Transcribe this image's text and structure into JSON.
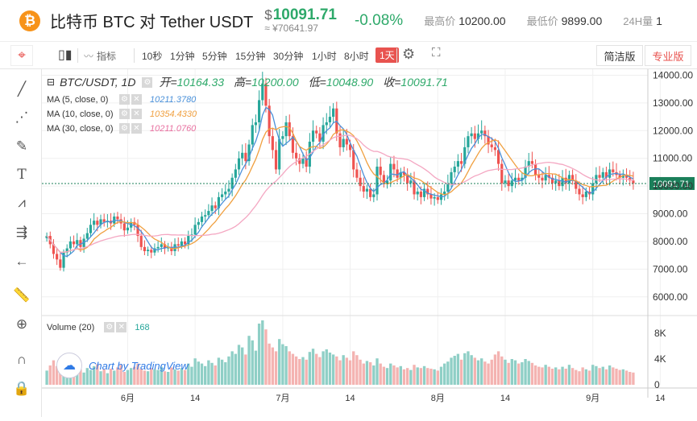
{
  "header": {
    "coin_symbol": "₿",
    "pair_title": "比特币 BTC  对 Tether USDT",
    "price_currency": "$",
    "price": "10091.71",
    "price_cny": "≈ ¥70641.97",
    "change": "-0.08%",
    "high_label": "最高价",
    "high_value": "10200.00",
    "low_label": "最低价",
    "low_value": "9899.00",
    "vol_label": "24H量",
    "vol_value": "1"
  },
  "toolbar": {
    "indicator_label": "指标",
    "intervals": [
      "10秒",
      "1分钟",
      "5分钟",
      "15分钟",
      "30分钟",
      "1小时",
      "8小时",
      "1天"
    ],
    "active_interval": "1天",
    "view_simple": "简洁版",
    "view_pro": "专业版"
  },
  "sidebar": {
    "icons": [
      "crosshair-icon",
      "line-tool-icon",
      "fib-tool-icon",
      "brush-icon",
      "text-icon",
      "pattern-icon",
      "measure-icon",
      "back-arrow-icon",
      "ruler-icon",
      "zoom-in-icon",
      "magnet-icon",
      "lock-icon"
    ]
  },
  "legend": {
    "symbol": "BTC/USDT, 1D",
    "open_label": "开=",
    "open": "10164.33",
    "high_label": "高=",
    "high": "10200.00",
    "low_label": "低=",
    "low": "10048.90",
    "close_label": "收=",
    "close": "10091.71",
    "ma": [
      {
        "name": "MA (5, close, 0)",
        "value": "10211.3780",
        "color": "#4a90d9"
      },
      {
        "name": "MA (10, close, 0)",
        "value": "10354.4330",
        "color": "#f0a040"
      },
      {
        "name": "MA (30, close, 0)",
        "value": "10211.0760",
        "color": "#e870a0"
      }
    ],
    "volume_name": "Volume (20)",
    "volume_value": "168",
    "tv_label": "Chart by TradingView"
  },
  "colors": {
    "up": "#26a69a",
    "down": "#ef5350",
    "vol_up": "#8fcfc6",
    "vol_down": "#f4b3b1",
    "ma5": "#4a90d9",
    "ma10": "#f0a040",
    "ma30": "#f4a7c2",
    "price_tag": "#1b7f5a"
  },
  "chart_data": {
    "type": "candlestick",
    "y_ticks": [
      "14000.00",
      "13000.00",
      "12000.00",
      "11000.00",
      "10000.00",
      "9000.00",
      "8000.00",
      "7000.00",
      "6000.00"
    ],
    "ylim": [
      5500,
      14100
    ],
    "vol_ticks": [
      "8K",
      "4K",
      "0"
    ],
    "vol_lim": [
      0,
      10000
    ],
    "x_ticks": [
      {
        "label": "6月",
        "index": 24
      },
      {
        "label": "14",
        "index": 44
      },
      {
        "label": "7月",
        "index": 70
      },
      {
        "label": "14",
        "index": 90
      },
      {
        "label": "8月",
        "index": 116
      },
      {
        "label": "14",
        "index": 136
      },
      {
        "label": "9月",
        "index": 162
      },
      {
        "label": "14",
        "index": 182
      }
    ],
    "last_price": 10091.71,
    "last_price_label": "10091.71",
    "close": [
      8200,
      7900,
      7550,
      7350,
      7050,
      7600,
      7750,
      8000,
      7900,
      8050,
      7800,
      8100,
      8300,
      8600,
      8750,
      8600,
      8800,
      8700,
      8750,
      8650,
      8900,
      8800,
      8650,
      8400,
      8500,
      8700,
      8600,
      8200,
      7800,
      7650,
      7700,
      7600,
      7750,
      7800,
      7900,
      7750,
      7800,
      7650,
      7900,
      7850,
      8000,
      7900,
      8200,
      8250,
      8600,
      8700,
      8900,
      8950,
      9100,
      9300,
      9200,
      9600,
      9700,
      9800,
      9900,
      10300,
      10600,
      11000,
      11200,
      10900,
      11500,
      12200,
      12300,
      13100,
      13700,
      12900,
      11800,
      11300,
      10600,
      11700,
      11800,
      12300,
      11800,
      11200,
      11000,
      10800,
      11000,
      10700,
      11600,
      12000,
      11900,
      11600,
      12200,
      12300,
      12500,
      12800,
      11900,
      11400,
      11700,
      11500,
      11300,
      10600,
      10300,
      10000,
      9800,
      9900,
      9600,
      9700,
      10700,
      10400,
      10100,
      10200,
      10800,
      10600,
      10300,
      10500,
      10400,
      10100,
      10200,
      9700,
      9800,
      9600,
      9900,
      9700,
      9550,
      9600,
      9500,
      9700,
      9800,
      10100,
      10500,
      10700,
      10900,
      10800,
      11400,
      11800,
      11900,
      11700,
      11900,
      12000,
      11800,
      11500,
      11400,
      11300,
      10800,
      10100,
      10200,
      10000,
      10200,
      10300,
      10200,
      10300,
      10700,
      10900,
      10800,
      10400,
      10300,
      10200,
      10400,
      10300,
      10100,
      10200,
      10000,
      10300,
      10100,
      10400,
      10200,
      9900,
      9700,
      9600,
      9800,
      9700,
      10100,
      10400,
      10300,
      10500,
      10300,
      10600,
      10500,
      10400,
      10300,
      10400,
      10300,
      10200,
      10100
    ],
    "volume": [
      2200,
      3000,
      3800,
      2900,
      3500,
      2700,
      2100,
      1800,
      2200,
      2000,
      2400,
      1900,
      2600,
      2300,
      2900,
      3200,
      2100,
      2400,
      1800,
      2500,
      2200,
      2700,
      3100,
      2000,
      2300,
      2600,
      2800,
      3300,
      2500,
      2200,
      2100,
      2600,
      2400,
      2300,
      2800,
      2100,
      2000,
      2700,
      2400,
      2200,
      2600,
      2300,
      3300,
      2800,
      4100,
      3600,
      3300,
      2900,
      3800,
      3400,
      3000,
      4200,
      3900,
      3500,
      4400,
      5200,
      4800,
      6200,
      5800,
      4700,
      7600,
      6900,
      5300,
      9500,
      10000,
      8600,
      6400,
      5800,
      5200,
      7100,
      6300,
      6000,
      5200,
      4800,
      4400,
      4000,
      4300,
      3900,
      5100,
      5600,
      4800,
      4300,
      5200,
      5500,
      5000,
      4700,
      4400,
      3800,
      4600,
      4200,
      3800,
      5200,
      4600,
      3900,
      3300,
      3700,
      3500,
      3000,
      4100,
      3300,
      2800,
      2600,
      3300,
      3000,
      2700,
      2900,
      2400,
      2600,
      2300,
      3100,
      2700,
      2600,
      2900,
      2600,
      2500,
      2400,
      2200,
      2800,
      3300,
      3600,
      4200,
      4500,
      4800,
      3900,
      4900,
      5200,
      4600,
      4200,
      3800,
      4100,
      3600,
      3300,
      3900,
      4700,
      5200,
      4400,
      3900,
      3400,
      4000,
      3800,
      3300,
      3500,
      4000,
      3700,
      3400,
      3000,
      2800,
      2700,
      3100,
      2800,
      2500,
      2700,
      2400,
      2800,
      2500,
      3100,
      2600,
      2300,
      2100,
      2700,
      2400,
      2200,
      3100,
      2900,
      2600,
      2800,
      2400,
      3000,
      2700,
      2500,
      2300,
      2400,
      2200,
      2000,
      1900
    ]
  }
}
